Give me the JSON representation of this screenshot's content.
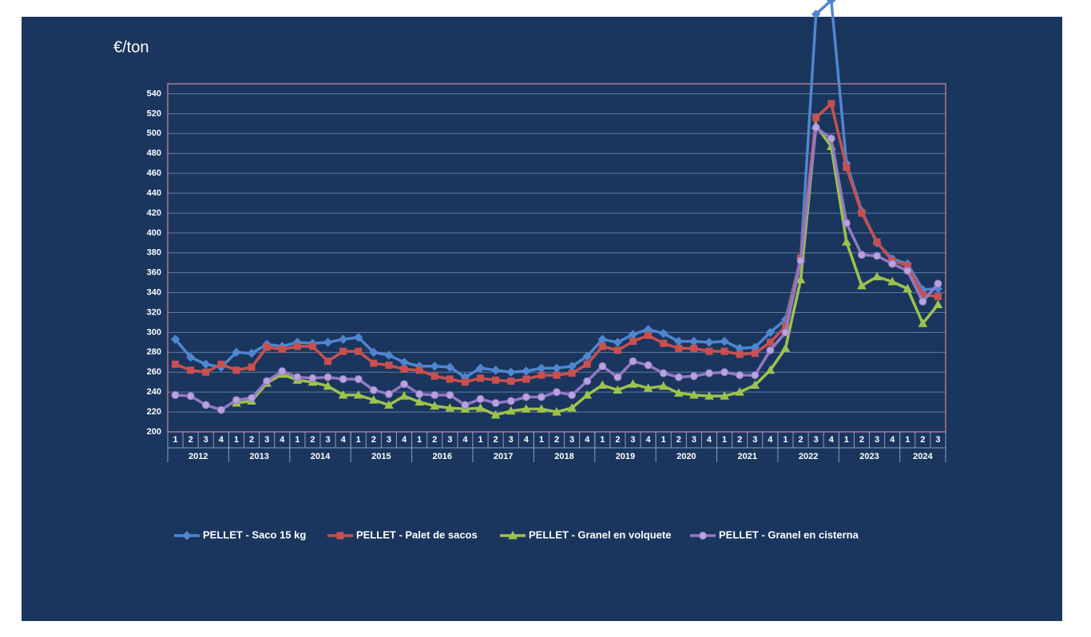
{
  "chart_data": {
    "type": "line",
    "y_unit_label": "€/ton",
    "categories": [
      "1",
      "2",
      "3",
      "4",
      "1",
      "2",
      "3",
      "4",
      "1",
      "2",
      "3",
      "4",
      "1",
      "2",
      "3",
      "4",
      "1",
      "2",
      "3",
      "4",
      "1",
      "2",
      "3",
      "4",
      "1",
      "2",
      "3",
      "4",
      "1",
      "2",
      "3",
      "4",
      "1",
      "2",
      "3",
      "4",
      "1",
      "2",
      "3",
      "4",
      "1",
      "2",
      "3",
      "4",
      "1",
      "2",
      "3",
      "4",
      "1",
      "2",
      "3"
    ],
    "years": [
      "2012",
      "2013",
      "2014",
      "2015",
      "2016",
      "2017",
      "2018",
      "2019",
      "2020",
      "2021",
      "2022",
      "2023",
      "2024"
    ],
    "ylim": [
      200,
      550
    ],
    "yticks": [
      200,
      220,
      240,
      260,
      280,
      300,
      320,
      340,
      360,
      380,
      400,
      420,
      440,
      460,
      480,
      500,
      520,
      540
    ],
    "grid": true,
    "series": [
      {
        "name": "PELLET - Saco 15 kg",
        "color": "#4f86d0",
        "marker": "diamond",
        "values": [
          293,
          275,
          268,
          265,
          280,
          279,
          288,
          286,
          290,
          289,
          290,
          293,
          295,
          280,
          277,
          270,
          266,
          266,
          265,
          255,
          264,
          262,
          260,
          261,
          264,
          264,
          266,
          276,
          293,
          290,
          298,
          303,
          299,
          291,
          291,
          290,
          291,
          284,
          285,
          300,
          313,
          375,
          620,
          634,
          470,
          422,
          390,
          374,
          369,
          343,
          344
        ]
      },
      {
        "name": "PELLET -  Palet de sacos",
        "color": "#c9504f",
        "marker": "square",
        "values": [
          268,
          262,
          260,
          268,
          262,
          265,
          285,
          283,
          286,
          286,
          271,
          281,
          281,
          269,
          267,
          263,
          262,
          256,
          253,
          250,
          254,
          252,
          251,
          253,
          257,
          257,
          259,
          268,
          286,
          282,
          291,
          297,
          289,
          284,
          284,
          281,
          281,
          278,
          279,
          290,
          306,
          375,
          516,
          530,
          466,
          420,
          391,
          372,
          367,
          338,
          336
        ]
      },
      {
        "name": "PELLET - Granel en volquete",
        "color": "#9dc34d",
        "marker": "triangle",
        "values": [
          null,
          null,
          null,
          null,
          229,
          231,
          249,
          258,
          252,
          250,
          246,
          237,
          237,
          232,
          227,
          236,
          230,
          226,
          224,
          223,
          224,
          217,
          221,
          223,
          223,
          220,
          224,
          237,
          247,
          242,
          248,
          244,
          246,
          239,
          237,
          236,
          236,
          240,
          247,
          262,
          284,
          353,
          508,
          487,
          391,
          347,
          356,
          351,
          344,
          309,
          328
        ]
      },
      {
        "name": "PELLET - Granel en cisterna",
        "color": "#9478c4",
        "marker": "circle",
        "values": [
          237,
          236,
          227,
          222,
          232,
          234,
          251,
          261,
          255,
          254,
          255,
          253,
          253,
          242,
          238,
          248,
          238,
          237,
          237,
          227,
          233,
          229,
          231,
          235,
          235,
          240,
          237,
          251,
          266,
          255,
          271,
          267,
          259,
          255,
          256,
          259,
          260,
          257,
          257,
          282,
          300,
          372,
          506,
          495,
          410,
          378,
          377,
          369,
          362,
          331,
          349
        ]
      }
    ]
  }
}
